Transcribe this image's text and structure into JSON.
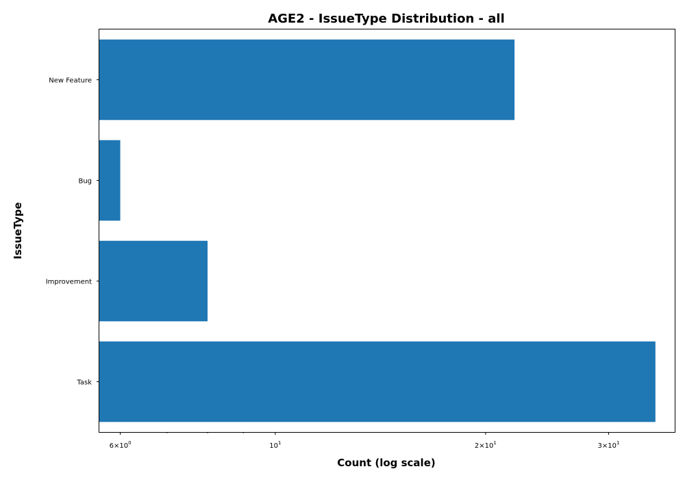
{
  "chart_data": {
    "type": "bar",
    "orientation": "horizontal",
    "title": "AGE2 - IssueType Distribution - all",
    "xlabel": "Count (log scale)",
    "ylabel": "IssueType",
    "x_scale": "log",
    "xlim": [
      5.6,
      37.3
    ],
    "categories": [
      "New Feature",
      "Bug",
      "Improvement",
      "Task"
    ],
    "values": [
      22,
      6,
      8,
      35
    ],
    "x_ticks": [
      {
        "value": 6,
        "mantissa": "6",
        "base": "10",
        "exp": "0"
      },
      {
        "value": 10,
        "mantissa": "",
        "base": "10",
        "exp": "1"
      },
      {
        "value": 20,
        "mantissa": "2",
        "base": "10",
        "exp": "1"
      },
      {
        "value": 30,
        "mantissa": "3",
        "base": "10",
        "exp": "1"
      }
    ],
    "minor_ticks": [
      7,
      8,
      9
    ],
    "bar_color": "#1f77b4",
    "grid": false,
    "legend": "none"
  }
}
